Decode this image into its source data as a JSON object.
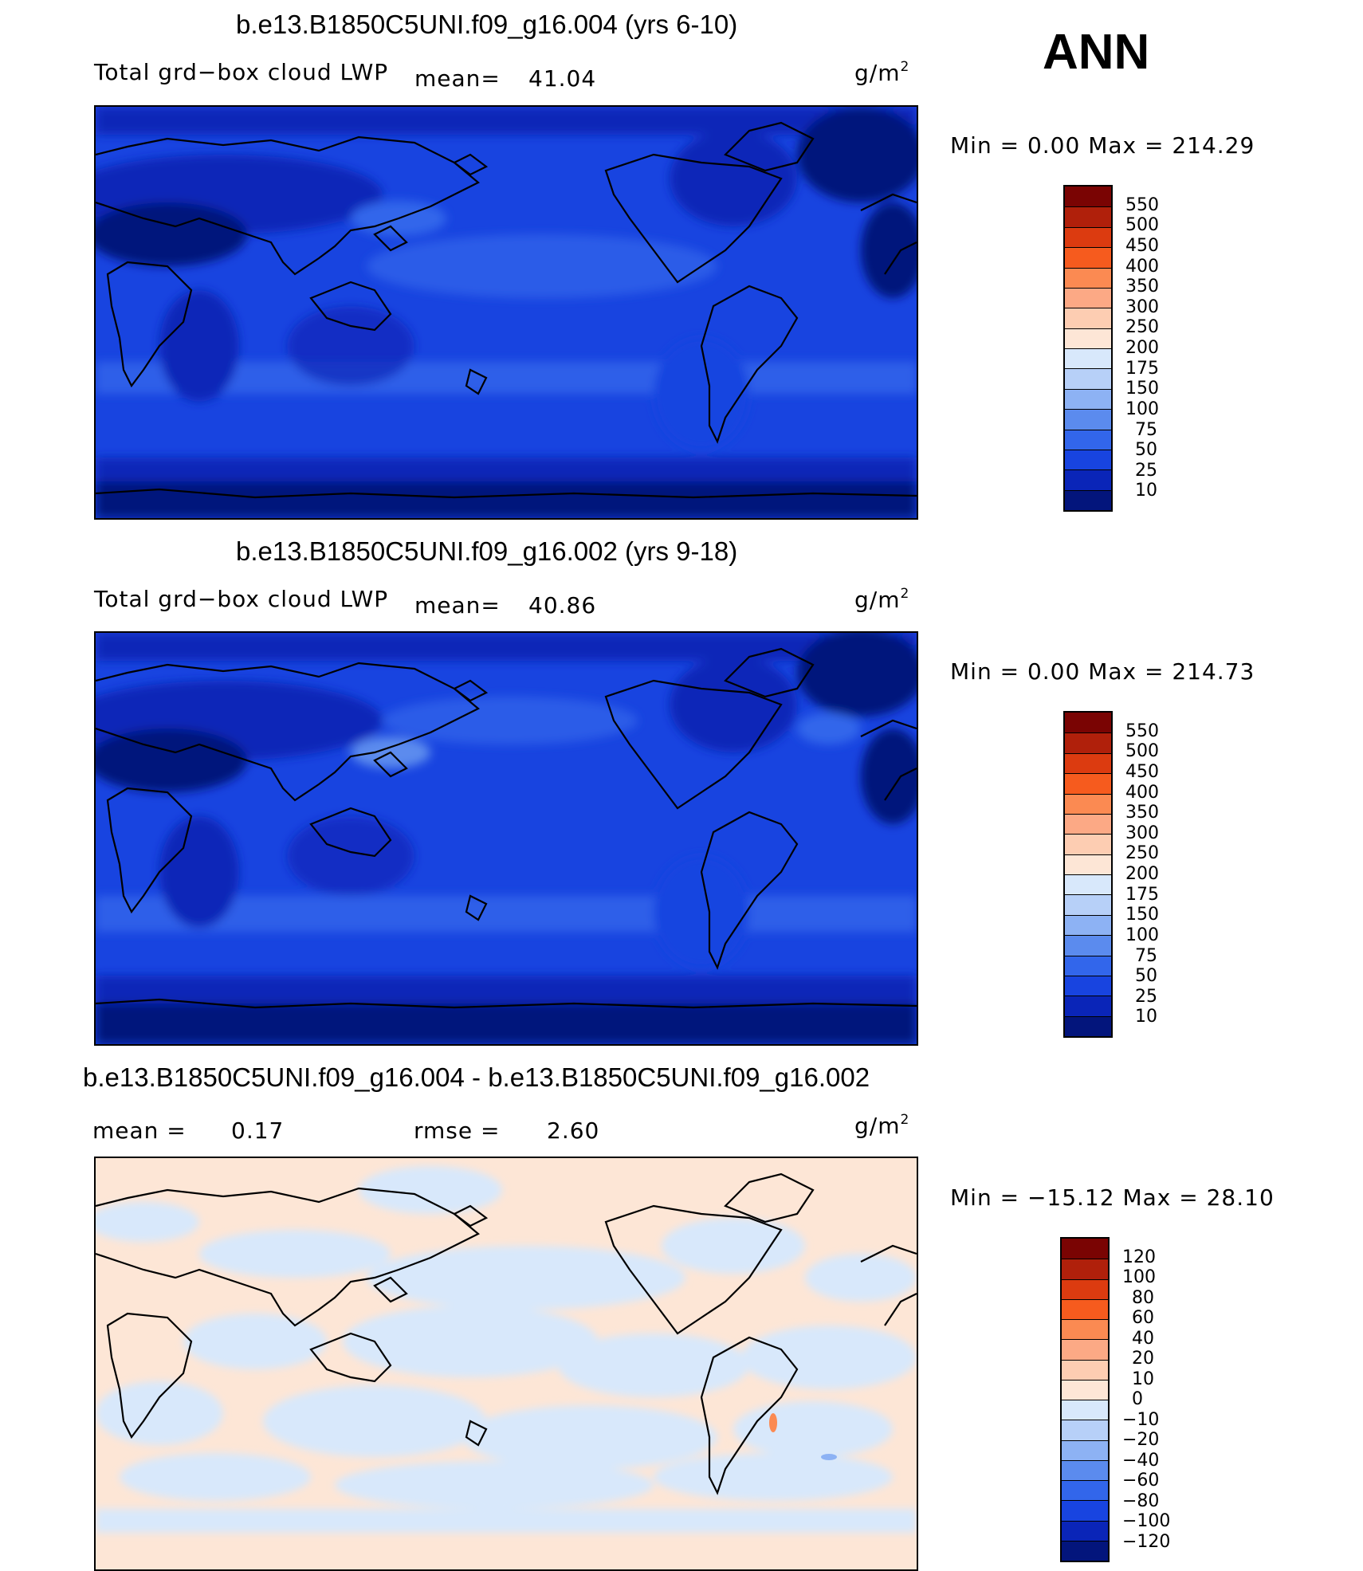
{
  "season": "ANN",
  "panels": [
    {
      "title": "b.e13.B1850C5UNI.f09_g16.004 (yrs 6-10)",
      "field_label": "Total grd−box cloud LWP",
      "mean_label": "mean=",
      "mean_value": "41.04",
      "unit_base": "g/m",
      "unit_exp": "2",
      "minmax": "Min =     0.00  Max  =  214.29",
      "colorbar_labels": [
        "550",
        "500",
        "450",
        "400",
        "350",
        "300",
        "250",
        "200",
        "175",
        "150",
        "100",
        "75",
        "50",
        "25",
        "10"
      ],
      "colors": [
        "#7a0403",
        "#b0200b",
        "#dc3b10",
        "#f65b1e",
        "#fb8a52",
        "#fca985",
        "#fdcdb2",
        "#fde6d6",
        "#d8e8fb",
        "#b7d0f8",
        "#8db2f4",
        "#5b8bee",
        "#3266eb",
        "#1844e0",
        "#0a25b8",
        "#03157c"
      ]
    },
    {
      "title": "b.e13.B1850C5UNI.f09_g16.002 (yrs 9-18)",
      "field_label": "Total grd−box cloud LWP",
      "mean_label": "mean=",
      "mean_value": "40.86",
      "unit_base": "g/m",
      "unit_exp": "2",
      "minmax": "Min =     0.00  Max  =  214.73",
      "colorbar_labels": [
        "550",
        "500",
        "450",
        "400",
        "350",
        "300",
        "250",
        "200",
        "175",
        "150",
        "100",
        "75",
        "50",
        "25",
        "10"
      ],
      "colors": [
        "#7a0403",
        "#b0200b",
        "#dc3b10",
        "#f65b1e",
        "#fb8a52",
        "#fca985",
        "#fdcdb2",
        "#fde6d6",
        "#d8e8fb",
        "#b7d0f8",
        "#8db2f4",
        "#5b8bee",
        "#3266eb",
        "#1844e0",
        "#0a25b8",
        "#03157c"
      ]
    },
    {
      "title": "b.e13.B1850C5UNI.f09_g16.004 - b.e13.B1850C5UNI.f09_g16.002",
      "mean_label": "mean =",
      "mean_value": "0.17",
      "rmse_label": "rmse =",
      "rmse_value": "2.60",
      "unit_base": "g/m",
      "unit_exp": "2",
      "minmax": "Min = −15.12  Max  =   28.10",
      "colorbar_labels": [
        "120",
        "100",
        "80",
        "60",
        "40",
        "20",
        "10",
        "0",
        "−10",
        "−20",
        "−40",
        "−60",
        "−80",
        "−100",
        "−120"
      ],
      "colors": [
        "#7a0403",
        "#b0200b",
        "#dc3b10",
        "#f65b1e",
        "#fb8a52",
        "#fca985",
        "#fdcdb2",
        "#fde6d6",
        "#d8e8fb",
        "#b7d0f8",
        "#8db2f4",
        "#5b8bee",
        "#3266eb",
        "#1844e0",
        "#0a25b8",
        "#03157c"
      ]
    }
  ],
  "chart_data": [
    {
      "type": "heatmap",
      "title": "b.e13.B1850C5UNI.f09_g16.004 (yrs 6-10)",
      "field": "Total grd−box cloud LWP",
      "units": "g/m2",
      "mean": 41.04,
      "min": 0.0,
      "max": 214.29,
      "levels": [
        10,
        25,
        50,
        75,
        100,
        150,
        175,
        200,
        250,
        300,
        350,
        400,
        450,
        500,
        550
      ]
    },
    {
      "type": "heatmap",
      "title": "b.e13.B1850C5UNI.f09_g16.002 (yrs 9-18)",
      "field": "Total grd−box cloud LWP",
      "units": "g/m2",
      "mean": 40.86,
      "min": 0.0,
      "max": 214.73,
      "levels": [
        10,
        25,
        50,
        75,
        100,
        150,
        175,
        200,
        250,
        300,
        350,
        400,
        450,
        500,
        550
      ]
    },
    {
      "type": "heatmap",
      "title": "b.e13.B1850C5UNI.f09_g16.004 - b.e13.B1850C5UNI.f09_g16.002",
      "units": "g/m2",
      "mean": 0.17,
      "rmse": 2.6,
      "min": -15.12,
      "max": 28.1,
      "levels": [
        -120,
        -100,
        -80,
        -60,
        -40,
        -20,
        -10,
        0,
        10,
        20,
        40,
        60,
        80,
        100,
        120
      ]
    }
  ]
}
